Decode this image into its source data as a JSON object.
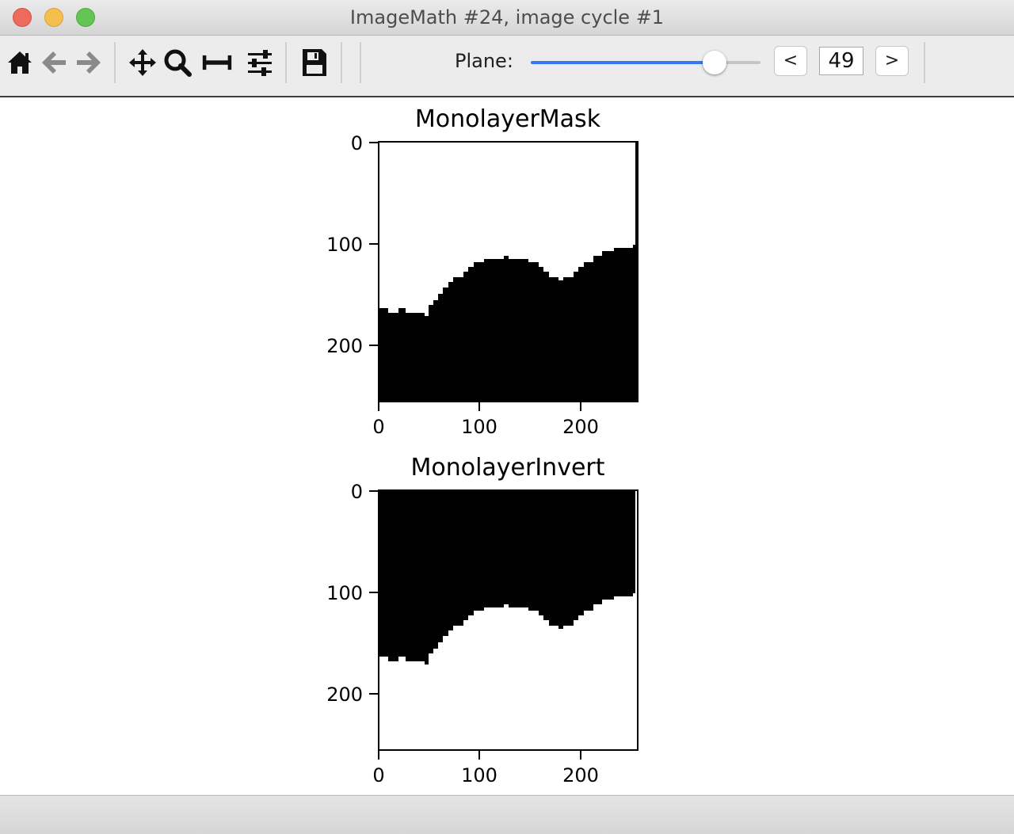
{
  "window": {
    "title": "ImageMath #24, image cycle #1"
  },
  "toolbar": {
    "icons": [
      "home-icon",
      "back-arrow-icon",
      "forward-arrow-icon",
      "pan-icon",
      "zoom-icon",
      "subplot-spacing-icon",
      "configure-sliders-icon",
      "save-icon"
    ],
    "plane_label": "Plane:",
    "plane_value": "49",
    "prev_label": "<",
    "next_label": ">",
    "slider_position": 0.8,
    "accent_color": "#3478f6"
  },
  "plots": [
    {
      "title": "MonolayerMask",
      "yticks": [
        "0",
        "100",
        "200"
      ],
      "xticks": [
        "0",
        "100",
        "200"
      ],
      "inverted": false
    },
    {
      "title": "MonolayerInvert",
      "yticks": [
        "0",
        "100",
        "200"
      ],
      "xticks": [
        "0",
        "100",
        "200"
      ],
      "inverted": true
    }
  ]
}
